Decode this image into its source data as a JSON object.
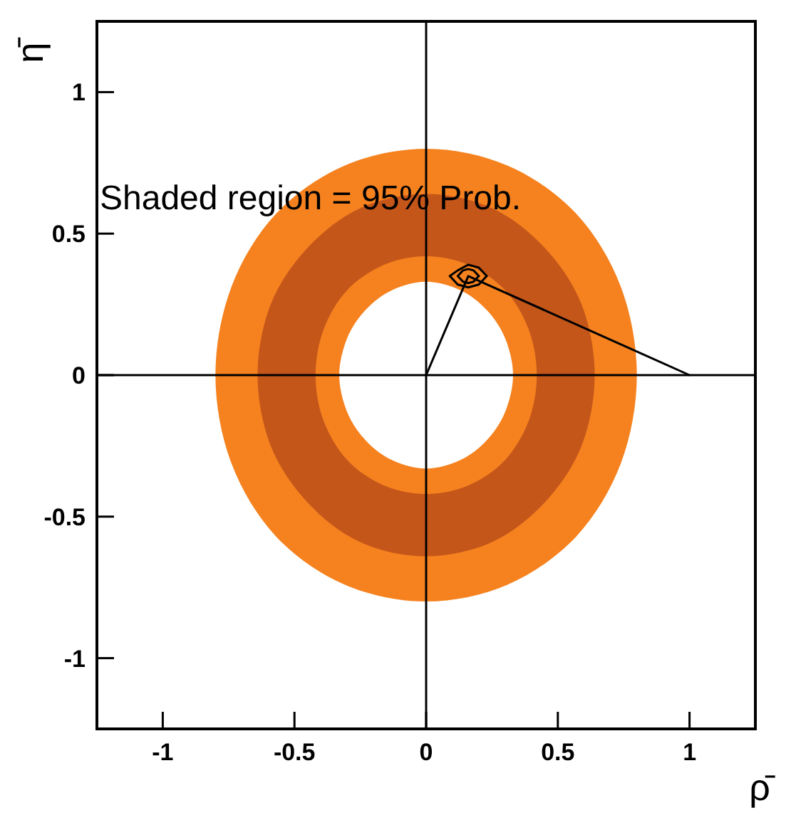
{
  "chart_data": {
    "type": "area",
    "xlabel": "ρ̄",
    "ylabel": "η̄",
    "annotations": [
      "Shaded region = 95% Prob."
    ],
    "xlim": [
      -1.25,
      1.25
    ],
    "ylim": [
      -1.25,
      1.25
    ],
    "xticks": [
      -1,
      -0.5,
      0,
      0.5,
      1
    ],
    "yticks": [
      -1,
      -0.5,
      0,
      0.5,
      1
    ],
    "grid": false,
    "series": [
      {
        "color": "#f5821f",
        "x": [
          0.8,
          0.74,
          0.57,
          0.31,
          0,
          -0.31,
          -0.57,
          -0.74,
          -0.8,
          -0.74,
          -0.57,
          -0.31,
          0,
          0.31,
          0.57,
          0.74
        ],
        "values": [
          0,
          0.31,
          0.57,
          0.74,
          0.8,
          0.74,
          0.57,
          0.31,
          0,
          -0.31,
          -0.57,
          -0.74,
          -0.8,
          -0.74,
          -0.57,
          -0.31
        ]
      },
      {
        "color": "#c4561a",
        "x": [
          0.64,
          0.59,
          0.45,
          0.25,
          0,
          -0.25,
          -0.45,
          -0.59,
          -0.64,
          -0.59,
          -0.45,
          -0.25,
          0,
          0.25,
          0.45,
          0.59
        ],
        "values": [
          0,
          0.25,
          0.45,
          0.59,
          0.64,
          0.59,
          0.45,
          0.25,
          0,
          -0.25,
          -0.45,
          -0.59,
          -0.64,
          -0.59,
          -0.45,
          -0.25
        ]
      },
      {
        "color": "#f5821f",
        "x": [
          0.42,
          0.39,
          0.3,
          0.16,
          0,
          -0.16,
          -0.3,
          -0.39,
          -0.42,
          -0.39,
          -0.3,
          -0.16,
          0,
          0.16,
          0.3,
          0.39
        ],
        "values": [
          0,
          0.16,
          0.3,
          0.39,
          0.42,
          0.39,
          0.3,
          0.16,
          0,
          -0.16,
          -0.3,
          -0.39,
          -0.42,
          -0.39,
          -0.3,
          -0.16
        ]
      },
      {
        "color": "#ffffff",
        "x": [
          0.33,
          0.3,
          0.23,
          0.13,
          0,
          -0.13,
          -0.23,
          -0.3,
          -0.33,
          -0.3,
          -0.23,
          -0.13,
          0,
          0.13,
          0.23,
          0.3
        ],
        "values": [
          0,
          0.13,
          0.23,
          0.3,
          0.33,
          0.3,
          0.23,
          0.13,
          0,
          -0.13,
          -0.23,
          -0.3,
          -0.33,
          -0.3,
          -0.23,
          -0.13
        ]
      },
      {
        "type": "line",
        "color": "#000000",
        "x": [
          -1.25,
          1.25
        ],
        "values": [
          0,
          0
        ]
      },
      {
        "type": "line",
        "color": "#000000",
        "x": [
          0,
          0
        ],
        "values": [
          -1.25,
          1.25
        ]
      },
      {
        "type": "line",
        "color": "#000000",
        "x": [
          0,
          0.16,
          1
        ],
        "values": [
          0,
          0.35,
          0
        ]
      },
      {
        "type": "line",
        "color": "#000000",
        "x": [
          0.09,
          0.12,
          0.16,
          0.2,
          0.23
        ],
        "values": [
          0.35,
          0.37,
          0.39,
          0.38,
          0.35
        ]
      },
      {
        "type": "line",
        "color": "#000000",
        "x": [
          0.09,
          0.12,
          0.16,
          0.2,
          0.23
        ],
        "values": [
          0.35,
          0.32,
          0.31,
          0.32,
          0.35
        ]
      },
      {
        "type": "line",
        "color": "#000000",
        "x": [
          0.12,
          0.14,
          0.16,
          0.18,
          0.2
        ],
        "values": [
          0.35,
          0.37,
          0.375,
          0.37,
          0.35
        ]
      },
      {
        "type": "line",
        "color": "#000000",
        "x": [
          0.12,
          0.14,
          0.16,
          0.18,
          0.2
        ],
        "values": [
          0.35,
          0.33,
          0.325,
          0.33,
          0.35
        ]
      }
    ]
  }
}
